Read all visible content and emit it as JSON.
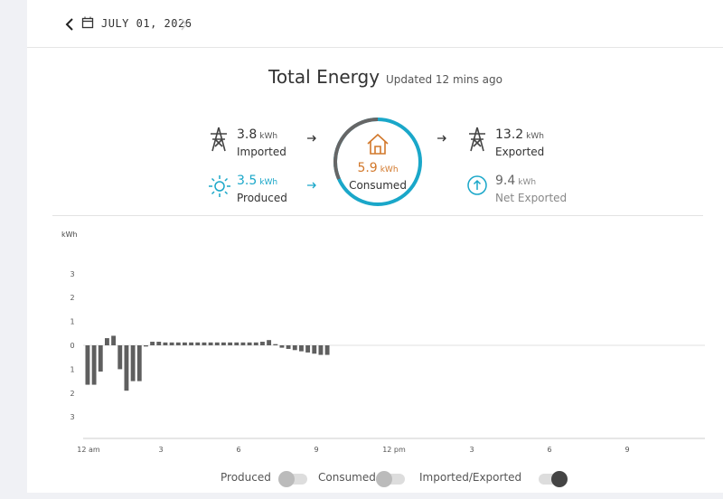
{
  "header": {
    "date": "JULY 01, 2026"
  },
  "summary": {
    "title": "Total Energy",
    "updated": "Updated 12 mins ago",
    "imported": {
      "value": "3.8",
      "unit": "kWh",
      "label": "Imported"
    },
    "produced": {
      "value": "3.5",
      "unit": "kWh",
      "label": "Produced"
    },
    "consumed": {
      "value": "5.9",
      "unit": "kWh",
      "label": "Consumed"
    },
    "exported": {
      "value": "13.2",
      "unit": "kWh",
      "label": "Exported"
    },
    "net": {
      "value": "9.4",
      "unit": "kWh",
      "label": "Net Exported"
    }
  },
  "chart_data": {
    "type": "bar",
    "y_label": "kWh",
    "color": "#5f5f5f",
    "x": [
      0,
      0.25,
      0.5,
      0.75,
      1,
      1.25,
      1.5,
      1.75,
      2,
      2.25,
      2.5,
      2.75,
      3,
      3.25,
      3.5,
      3.75,
      4,
      4.25,
      4.5,
      4.75,
      5,
      5.25,
      5.5,
      5.75,
      6,
      6.25,
      6.5,
      6.75,
      7,
      7.25,
      7.5,
      7.75,
      8,
      8.25,
      8.5,
      8.75,
      9,
      9.25
    ],
    "values": [
      -1.65,
      -1.65,
      -1.1,
      0.3,
      0.4,
      -1.0,
      -1.9,
      -1.5,
      -1.5,
      -0.05,
      0.15,
      0.15,
      0.12,
      0.12,
      0.12,
      0.12,
      0.12,
      0.12,
      0.12,
      0.12,
      0.12,
      0.12,
      0.12,
      0.12,
      0.12,
      0.12,
      0.12,
      0.15,
      0.22,
      0.05,
      -0.1,
      -0.15,
      -0.2,
      -0.25,
      -0.3,
      -0.35,
      -0.4,
      -0.4
    ],
    "bar_width": 0.17,
    "xlim": [
      0,
      24
    ],
    "xticks": [
      {
        "value": 0,
        "label": "12 am"
      },
      3,
      6,
      9,
      {
        "value": 12,
        "label": "12 pm"
      },
      {
        "value": 15,
        "label": "3"
      },
      {
        "value": 18,
        "label": "6"
      },
      {
        "value": 21,
        "label": "9"
      }
    ],
    "ylim": [
      -3.9,
      3.9
    ],
    "yticks": [
      3,
      2,
      1,
      0,
      {
        "value": -1,
        "label": "1"
      },
      {
        "value": -2,
        "label": "2"
      },
      {
        "value": -3,
        "label": "3"
      }
    ],
    "legend": [
      "Produced",
      "Consumed",
      "Imported/Exported"
    ],
    "legend_on": [
      false,
      false,
      true
    ]
  }
}
